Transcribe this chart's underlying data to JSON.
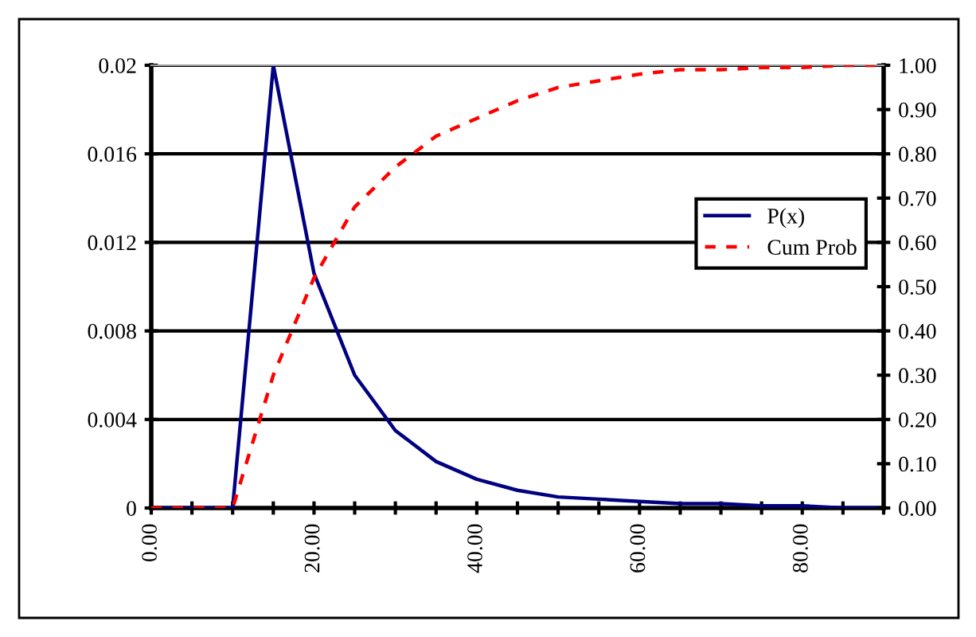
{
  "chart_data": {
    "type": "line",
    "x": [
      0,
      5,
      10,
      15,
      20,
      25,
      30,
      35,
      40,
      45,
      50,
      55,
      60,
      65,
      70,
      75,
      80,
      85,
      90
    ],
    "series": [
      {
        "name": "P(x)",
        "color": "#000080",
        "line_style": "solid",
        "values": [
          0,
          0,
          0,
          0.02,
          0.0106,
          0.006,
          0.0035,
          0.0021,
          0.0013,
          0.0008,
          0.0005,
          0.0004,
          0.0003,
          0.0002,
          0.0002,
          0.0001,
          0.0001,
          0,
          0
        ]
      },
      {
        "name": "Cum Prob",
        "color": "#ff0000",
        "line_style": "dashed",
        "axis": "y2",
        "values": [
          0,
          0,
          0,
          0.3,
          0.52,
          0.68,
          0.77,
          0.84,
          0.88,
          0.92,
          0.95,
          0.965,
          0.98,
          0.99,
          0.99,
          0.995,
          0.995,
          1.0,
          1.0
        ]
      }
    ],
    "xlim": [
      0,
      90
    ],
    "xticks": [
      {
        "value": 0,
        "label": "0.00"
      },
      {
        "value": 5,
        "label": null
      },
      {
        "value": 10,
        "label": null
      },
      {
        "value": 15,
        "label": null
      },
      {
        "value": 20,
        "label": "20.00"
      },
      {
        "value": 25,
        "label": null
      },
      {
        "value": 30,
        "label": null
      },
      {
        "value": 35,
        "label": null
      },
      {
        "value": 40,
        "label": "40.00"
      },
      {
        "value": 45,
        "label": null
      },
      {
        "value": 50,
        "label": null
      },
      {
        "value": 55,
        "label": null
      },
      {
        "value": 60,
        "label": "60.00"
      },
      {
        "value": 65,
        "label": null
      },
      {
        "value": 70,
        "label": null
      },
      {
        "value": 75,
        "label": null
      },
      {
        "value": 80,
        "label": "80.00"
      },
      {
        "value": 85,
        "label": null
      },
      {
        "value": 90,
        "label": null
      }
    ],
    "ylim": [
      0,
      0.02
    ],
    "yticks": [
      0,
      0.004,
      0.008,
      0.012,
      0.016,
      0.02
    ],
    "y2lim": [
      0,
      1.0
    ],
    "y2ticks": [
      {
        "value": 0,
        "label": "0.00"
      },
      {
        "value": 0.1,
        "label": "0.10"
      },
      {
        "value": 0.2,
        "label": "0.20"
      },
      {
        "value": 0.3,
        "label": "0.30"
      },
      {
        "value": 0.4,
        "label": "0.40"
      },
      {
        "value": 0.5,
        "label": "0.50"
      },
      {
        "value": 0.6,
        "label": "0.60"
      },
      {
        "value": 0.7,
        "label": "0.70"
      },
      {
        "value": 0.8,
        "label": "0.80"
      },
      {
        "value": 0.9,
        "label": "0.90"
      },
      {
        "value": 1.0,
        "label": "1.00"
      }
    ],
    "grid": "y",
    "legend": "right",
    "marker": "none"
  }
}
